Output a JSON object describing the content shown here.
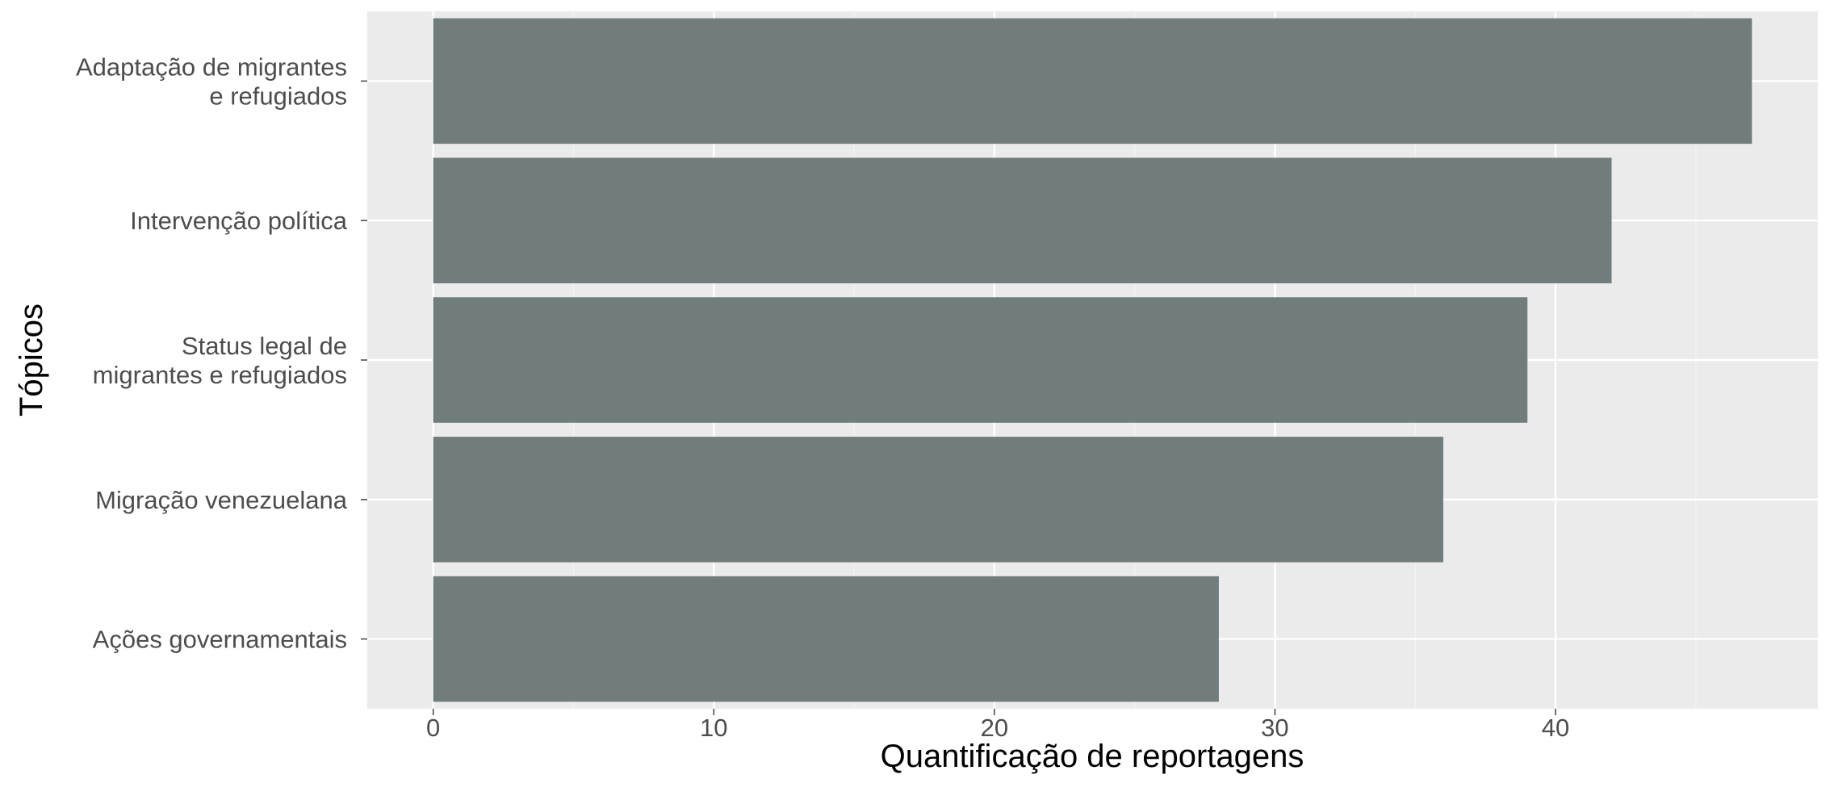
{
  "chart_data": {
    "type": "bar",
    "orientation": "horizontal",
    "title": "",
    "xlabel": "Quantificação de reportagens",
    "ylabel": "Tópicos",
    "categories": [
      "Adaptação de migrantes\ne refugiados",
      "Intervenção política",
      "Status legal de\nmigrantes e refugiados",
      "Migração venezuelana",
      "Ações governamentais"
    ],
    "values": [
      47,
      42,
      39,
      36,
      28
    ],
    "x_ticks": [
      0,
      10,
      20,
      30,
      40
    ],
    "xlim": [
      -2.35,
      49.35
    ],
    "grid": true,
    "legend": "none",
    "colors": {
      "bar": "#717d7c",
      "panel": "#ebebeb",
      "grid": "#ffffff"
    }
  }
}
